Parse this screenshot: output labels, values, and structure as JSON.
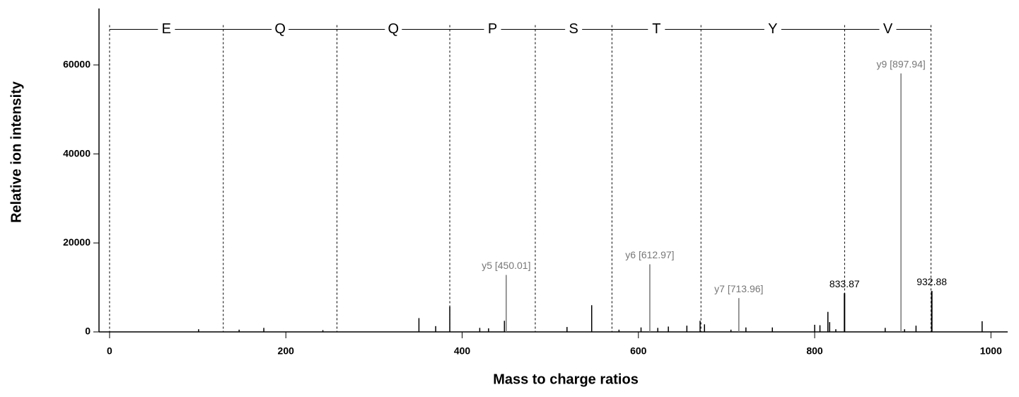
{
  "chart_data": {
    "type": "spectrum",
    "xlabel": "Mass to charge ratios",
    "ylabel": "Relative ion intensity",
    "xlim": [
      -12,
      1019
    ],
    "ylim": [
      0,
      72700
    ],
    "xticks": [
      0,
      200,
      400,
      600,
      800,
      1000
    ],
    "yticks": [
      0,
      20000,
      40000,
      60000
    ],
    "color": "#000000",
    "label_color": "#777777",
    "sequence": {
      "y": 68000,
      "residues": [
        "E",
        "Q",
        "Q",
        "P",
        "S",
        "T",
        "Y",
        "V"
      ],
      "boundaries": [
        0,
        129,
        258,
        386,
        483,
        570,
        671,
        834,
        932
      ]
    },
    "x": [
      101,
      147,
      175,
      242,
      351,
      370,
      386,
      420,
      430,
      448,
      519,
      547,
      578,
      603,
      622,
      634,
      655,
      670,
      675,
      705,
      722,
      752,
      800,
      806,
      815,
      817,
      824,
      880,
      902,
      915,
      990
    ],
    "values": [
      600,
      500,
      900,
      400,
      3100,
      1300,
      5700,
      900,
      800,
      2500,
      1100,
      6000,
      500,
      1000,
      900,
      1200,
      1400,
      2500,
      1700,
      500,
      1000,
      1000,
      1600,
      1500,
      4500,
      2200,
      600,
      900,
      600,
      1400,
      2400
    ],
    "labeled_peaks": {
      "x": [
        450.01,
        612.97,
        713.96,
        833.87,
        897.94,
        932.88
      ],
      "values": [
        12800,
        15200,
        7600,
        8700,
        58100,
        9200
      ],
      "labels": [
        "y5 [450.01]",
        "y6 [612.97]",
        "y7 [713.96]",
        "833.87",
        "y9 [897.94]",
        "932.88"
      ]
    }
  }
}
